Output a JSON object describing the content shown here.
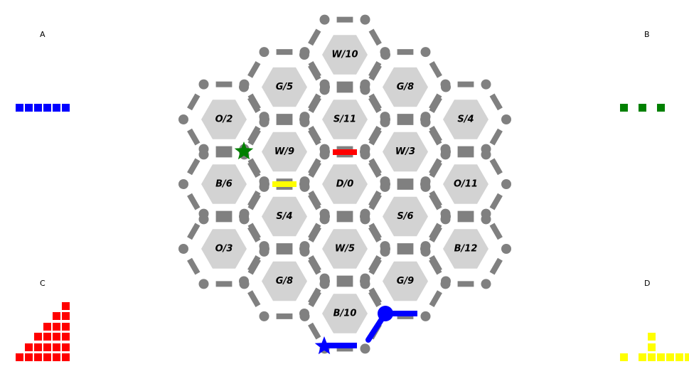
{
  "board": {
    "tiles": [
      {
        "id": "t0",
        "q": 0,
        "r": 0,
        "resource": "D",
        "number": 0,
        "label": "D/0"
      },
      {
        "id": "t1",
        "q": 0,
        "r": -1,
        "resource": "S",
        "number": 11,
        "label": "S/11"
      },
      {
        "id": "t2",
        "q": 0,
        "r": -2,
        "resource": "W",
        "number": 10,
        "label": "W/10"
      },
      {
        "id": "t3",
        "q": 0,
        "r": 1,
        "resource": "W",
        "number": 5,
        "label": "W/5"
      },
      {
        "id": "t4",
        "q": 0,
        "r": 2,
        "resource": "B",
        "number": 10,
        "label": "B/10"
      },
      {
        "id": "t5",
        "q": -1,
        "r": -0.5,
        "resource": "W",
        "number": 9,
        "label": "W/9"
      },
      {
        "id": "t6",
        "q": -1,
        "r": -1.5,
        "resource": "G",
        "number": 5,
        "label": "G/5"
      },
      {
        "id": "t7",
        "q": -1,
        "r": 0.5,
        "resource": "S",
        "number": 4,
        "label": "S/4"
      },
      {
        "id": "t8",
        "q": -1,
        "r": 1.5,
        "resource": "G",
        "number": 8,
        "label": "G/8"
      },
      {
        "id": "t9",
        "q": 1,
        "r": -0.5,
        "resource": "W",
        "number": 3,
        "label": "W/3"
      },
      {
        "id": "t10",
        "q": 1,
        "r": -1.5,
        "resource": "G",
        "number": 8,
        "label": "G/8"
      },
      {
        "id": "t11",
        "q": 1,
        "r": 0.5,
        "resource": "S",
        "number": 6,
        "label": "S/6"
      },
      {
        "id": "t12",
        "q": 1,
        "r": 1.5,
        "resource": "G",
        "number": 9,
        "label": "G/9"
      },
      {
        "id": "t13",
        "q": -2,
        "r": -1,
        "resource": "O",
        "number": 2,
        "label": "O/2"
      },
      {
        "id": "t14",
        "q": -2,
        "r": 0,
        "resource": "B",
        "number": 6,
        "label": "B/6"
      },
      {
        "id": "t15",
        "q": -2,
        "r": 1,
        "resource": "O",
        "number": 3,
        "label": "O/3"
      },
      {
        "id": "t16",
        "q": 2,
        "r": -1,
        "resource": "S",
        "number": 4,
        "label": "S/4"
      },
      {
        "id": "t17",
        "q": 2,
        "r": 0,
        "resource": "O",
        "number": 11,
        "label": "O/11"
      },
      {
        "id": "t18",
        "q": 2,
        "r": 1,
        "resource": "B",
        "number": 12,
        "label": "B/12"
      }
    ],
    "roads": [
      {
        "player": "D",
        "color": "#ffff00"
      },
      {
        "player": "C",
        "color": "#ff0000"
      },
      {
        "player": "A",
        "color": "#0000ff"
      }
    ],
    "settlements": [
      {
        "player": "B",
        "color": "#008000",
        "kind": "star"
      },
      {
        "player": "A",
        "color": "#0000ff",
        "kind": "star"
      },
      {
        "player": "A",
        "color": "#0000ff",
        "kind": "city"
      }
    ]
  },
  "players": [
    {
      "id": "A",
      "label": "A",
      "color": "#0000ff",
      "columns": [
        1,
        1,
        1,
        1,
        1,
        1
      ],
      "gaps": []
    },
    {
      "id": "B",
      "label": "B",
      "color": "#008000",
      "columns": [
        1,
        0,
        1,
        0,
        1
      ],
      "gaps": []
    },
    {
      "id": "C",
      "label": "C",
      "color": "#ff0000",
      "columns": [
        1,
        2,
        3,
        4,
        5,
        6
      ],
      "gaps": []
    },
    {
      "id": "D",
      "label": "D",
      "color": "#ffff00",
      "columns": [
        1,
        0,
        1,
        3,
        1,
        1,
        1,
        1
      ],
      "gaps": []
    }
  ],
  "colors": {
    "tile_fill": "#d3d3d3",
    "edge": "#808080",
    "node": "#808080"
  }
}
